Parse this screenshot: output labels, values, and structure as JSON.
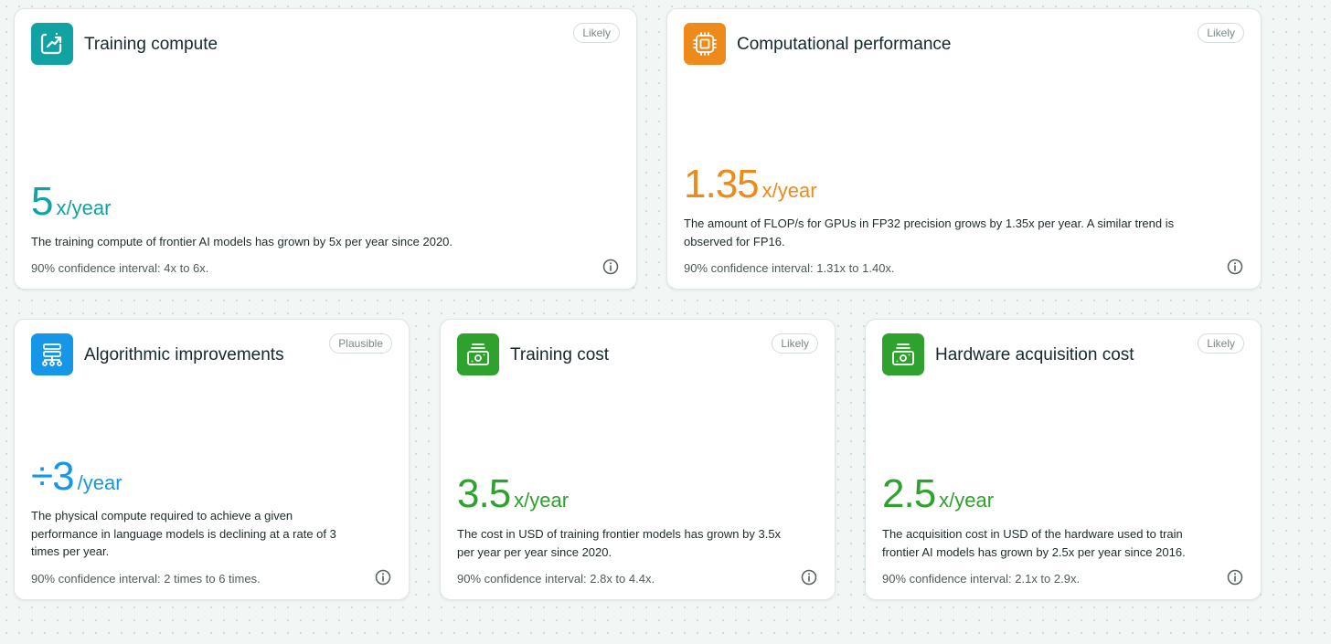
{
  "cards": [
    {
      "title": "Training compute",
      "badge": "Likely",
      "value": "5",
      "unit": "x/year",
      "description": "The training compute of frontier AI models has grown by 5x per year since 2020.",
      "confidence": "90% confidence interval: 4x to 6x.",
      "icon": "trend-chart-icon",
      "color": "#11a3a3"
    },
    {
      "title": "Computational performance",
      "badge": "Likely",
      "value": "1.35",
      "unit": "x/year",
      "description": "The amount of FLOP/s for GPUs in FP32 precision grows by 1.35x per year. A similar trend is observed for FP16.",
      "confidence": "90% confidence interval: 1.31x to 1.40x.",
      "icon": "chip-icon",
      "color": "#ee8a1b"
    },
    {
      "title": "Algorithmic improvements",
      "badge": "Plausible",
      "value": "÷3",
      "unit": "/year",
      "description": "The physical compute required to achieve a given performance in language models is declining at a rate of 3 times per year.",
      "confidence": "90% confidence interval: 2 times to 6 times.",
      "icon": "hierarchy-icon",
      "color": "#1596e8"
    },
    {
      "title": "Training cost",
      "badge": "Likely",
      "value": "3.5",
      "unit": "x/year",
      "description": "The cost in USD of training frontier models has grown by 3.5x per year per year since 2020.",
      "confidence": "90% confidence interval: 2.8x to 4.4x.",
      "icon": "cash-register-icon",
      "color": "#2ea12e"
    },
    {
      "title": "Hardware acquisition cost",
      "badge": "Likely",
      "value": "2.5",
      "unit": "x/year",
      "description": "The acquisition cost in USD of the hardware used to train frontier AI models has grown by 2.5x per year since 2016.",
      "confidence": "90% confidence interval: 2.1x to 2.9x.",
      "icon": "cash-register-icon",
      "color": "#2ea12e"
    }
  ]
}
